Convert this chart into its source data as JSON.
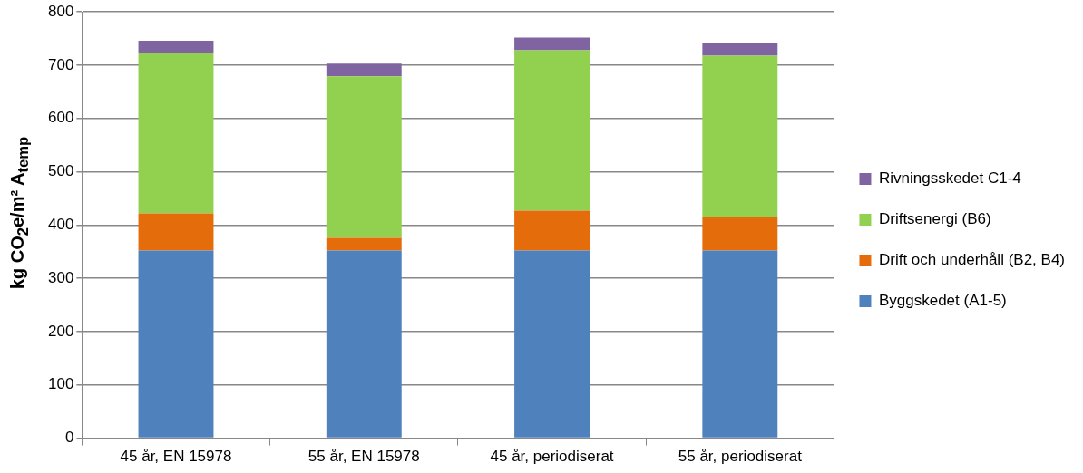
{
  "chart_data": {
    "type": "bar",
    "stacked": true,
    "ylabel": "kg CO$_{2}$e/m² A$_{temp}$",
    "categories": [
      "45 år, EN 15978",
      "55 år, EN 15978",
      "45 år, periodiserat",
      "55 år, periodiserat"
    ],
    "series": [
      {
        "name": "Byggskedet (A1-5)",
        "color": "#4f81bd",
        "values": [
          352,
          352,
          352,
          352
        ]
      },
      {
        "name": "Drift och underhåll (B2, B4)",
        "color": "#e46c0a",
        "values": [
          70,
          24,
          75,
          64
        ]
      },
      {
        "name": "Driftsenergi (B6)",
        "color": "#92d050",
        "values": [
          300,
          303,
          301,
          302
        ]
      },
      {
        "name": "Rivningsskedet C1-4",
        "color": "#8064a2",
        "values": [
          24,
          24,
          24,
          24
        ]
      }
    ],
    "ylim": [
      0,
      800
    ],
    "yticks": [
      0,
      100,
      200,
      300,
      400,
      500,
      600,
      700,
      800
    ],
    "grid": "y",
    "legend": "right"
  }
}
